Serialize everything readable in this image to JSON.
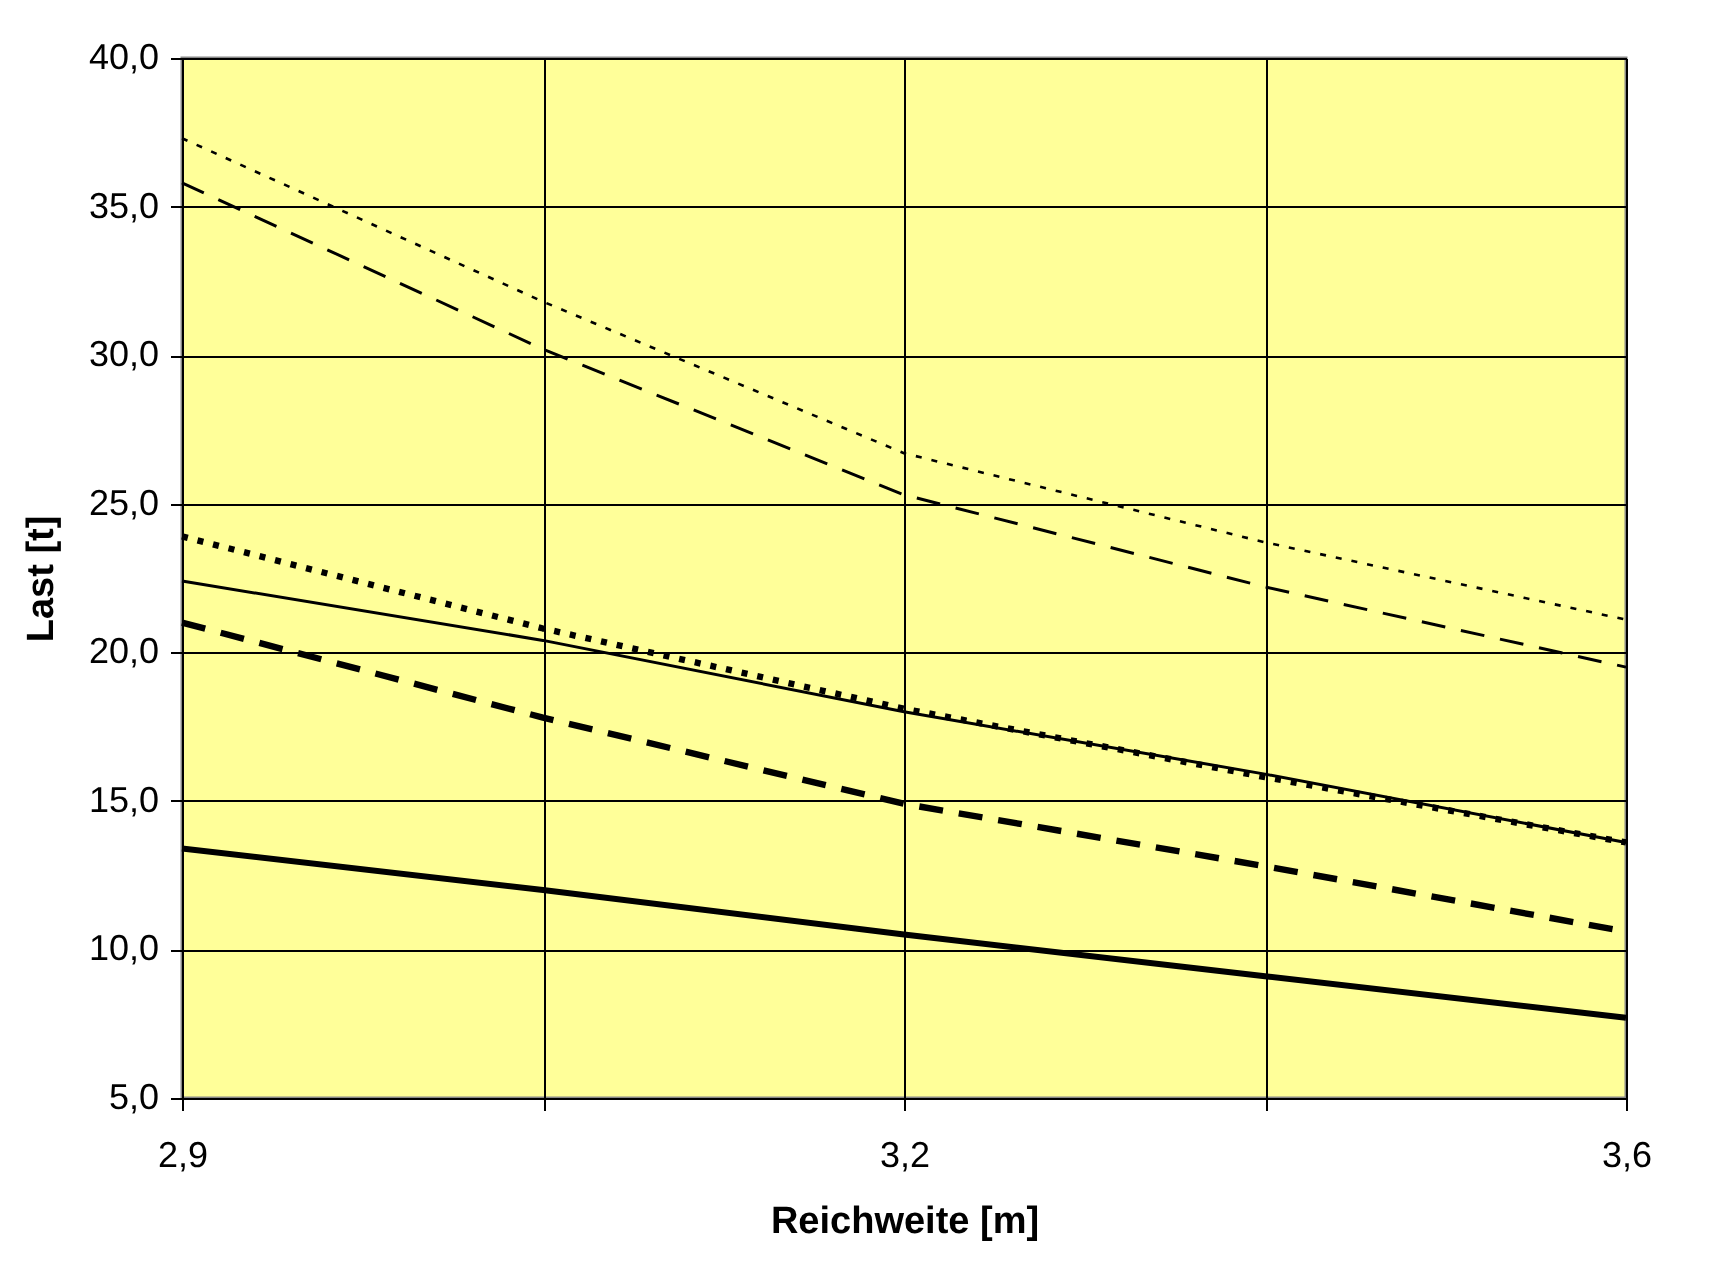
{
  "chart_data": {
    "type": "line",
    "xlabel": "Reichweite [m]",
    "ylabel": "Last [t]",
    "categories": [
      "2,9",
      null,
      "3,2",
      null,
      "3,6"
    ],
    "series": [
      {
        "color": "#000000",
        "line_style": "dotted",
        "values": [
          37.3,
          31.8,
          26.7,
          23.7,
          21.1
        ]
      },
      {
        "color": "#000000",
        "line_style": "dashed",
        "values": [
          35.8,
          30.2,
          25.3,
          22.2,
          19.5
        ]
      },
      {
        "color": "#000000",
        "line_style": "dotted",
        "values": [
          23.9,
          20.8,
          18.1,
          15.8,
          13.6
        ]
      },
      {
        "color": "#000000",
        "line_style": "solid",
        "values": [
          22.4,
          20.4,
          18.0,
          15.9,
          13.6
        ]
      },
      {
        "color": "#000000",
        "line_style": "dashed",
        "values": [
          21.0,
          17.8,
          14.9,
          12.8,
          10.6
        ]
      },
      {
        "color": "#000000",
        "line_style": "solid",
        "values": [
          13.4,
          12.0,
          10.5,
          9.1,
          7.7
        ]
      }
    ],
    "ylim": [
      5,
      40
    ],
    "yticks": [
      {
        "value": 5,
        "label": "5,0"
      },
      {
        "value": 10,
        "label": "10,0"
      },
      {
        "value": 15,
        "label": "15,0"
      },
      {
        "value": 20,
        "label": "20,0"
      },
      {
        "value": 25,
        "label": "25,0"
      },
      {
        "value": 30,
        "label": "30,0"
      },
      {
        "value": 35,
        "label": "35,0"
      },
      {
        "value": 40,
        "label": "40,0"
      }
    ],
    "grid": true,
    "marker": "none"
  }
}
